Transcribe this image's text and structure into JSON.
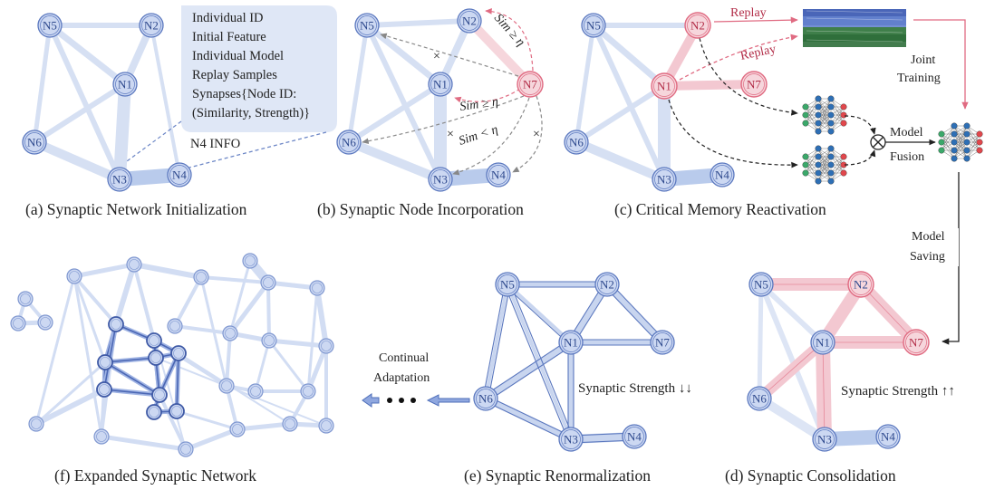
{
  "captions": {
    "a": "(a)  Synaptic Network Initialization",
    "b": "(b)  Synaptic Node Incorporation",
    "c": "(c)  Critical Memory Reactivation",
    "d": "(d)  Synaptic Consolidation",
    "e": "(e)  Synaptic Renormalization",
    "f": "(f)  Expanded Synaptic Network"
  },
  "nodes": {
    "n1": "N1",
    "n2": "N2",
    "n3": "N3",
    "n4": "N4",
    "n5": "N5",
    "n6": "N6",
    "n7": "N7"
  },
  "info_box": {
    "lines": [
      "Individual ID",
      "Initial Feature",
      "Individual Model",
      "Replay Samples",
      "Synapses{Node ID:",
      "(Similarity, Strength)}"
    ],
    "tag": "N4 INFO"
  },
  "panel_b": {
    "sim_ge_1": "Sim ≥ η",
    "sim_ge_2": "Sim ≥ η",
    "sim_lt": "Sim < η",
    "cross": "×"
  },
  "panel_c": {
    "replay_1": "Replay",
    "replay_2": "Replay",
    "joint_training_1": "Joint",
    "joint_training_2": "Training",
    "model_fusion_1": "Model",
    "model_fusion_2": "Fusion",
    "fusion_symbol": "⊗"
  },
  "model_saving": [
    "Model",
    "Saving"
  ],
  "continual_adaptation": [
    "Continual",
    "Adaptation"
  ],
  "strength_down": "Synaptic Strength ↓↓",
  "strength_up": "Synaptic Strength ↑↑",
  "colors": {
    "node_fill": "#ccd8f2",
    "node_stroke": "#5b78bf",
    "edge": "#c8d5ef",
    "edge_dark": "#5a77be",
    "red": "#e06b82",
    "red_fill": "#f6d6dc"
  }
}
